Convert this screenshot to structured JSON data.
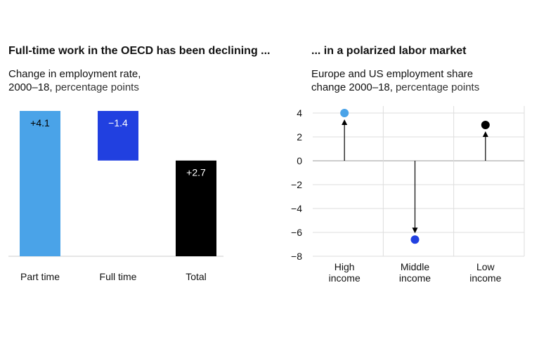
{
  "chart_data": [
    {
      "type": "waterfall",
      "title": "Full-time work in the OECD has been declining ...",
      "subtitle_lines": [
        "Change in employment rate,",
        "2000–18,"
      ],
      "unit": "percentage points",
      "categories": [
        "Part time",
        "Full time",
        "Total"
      ],
      "values": [
        4.1,
        -1.4,
        2.7
      ],
      "value_labels": [
        "+4.1",
        "−1.4",
        "+2.7"
      ],
      "colors": [
        "#4aa3e8",
        "#2140e0",
        "#000000"
      ],
      "label_colors": [
        "#000000",
        "#ffffff",
        "#ffffff"
      ]
    },
    {
      "type": "arrow-dot",
      "title": "... in a polarized labor market",
      "subtitle_lines": [
        "Europe and US employment share",
        "change 2000–18,"
      ],
      "unit": "percentage points",
      "categories": [
        [
          "High",
          "income"
        ],
        [
          "Middle",
          "income"
        ],
        [
          "Low",
          "income"
        ]
      ],
      "values": [
        4,
        -6.6,
        3
      ],
      "colors": [
        "#4aa3e8",
        "#2140e0",
        "#000000"
      ],
      "ylim": [
        -8,
        4
      ],
      "yticks": [
        4,
        2,
        0,
        {
          "value": -2,
          "label": "−2"
        },
        {
          "value": -4,
          "label": "−4"
        },
        {
          "value": -6,
          "label": "−6"
        },
        {
          "value": -8,
          "label": "−8"
        }
      ],
      "grid": true
    }
  ]
}
